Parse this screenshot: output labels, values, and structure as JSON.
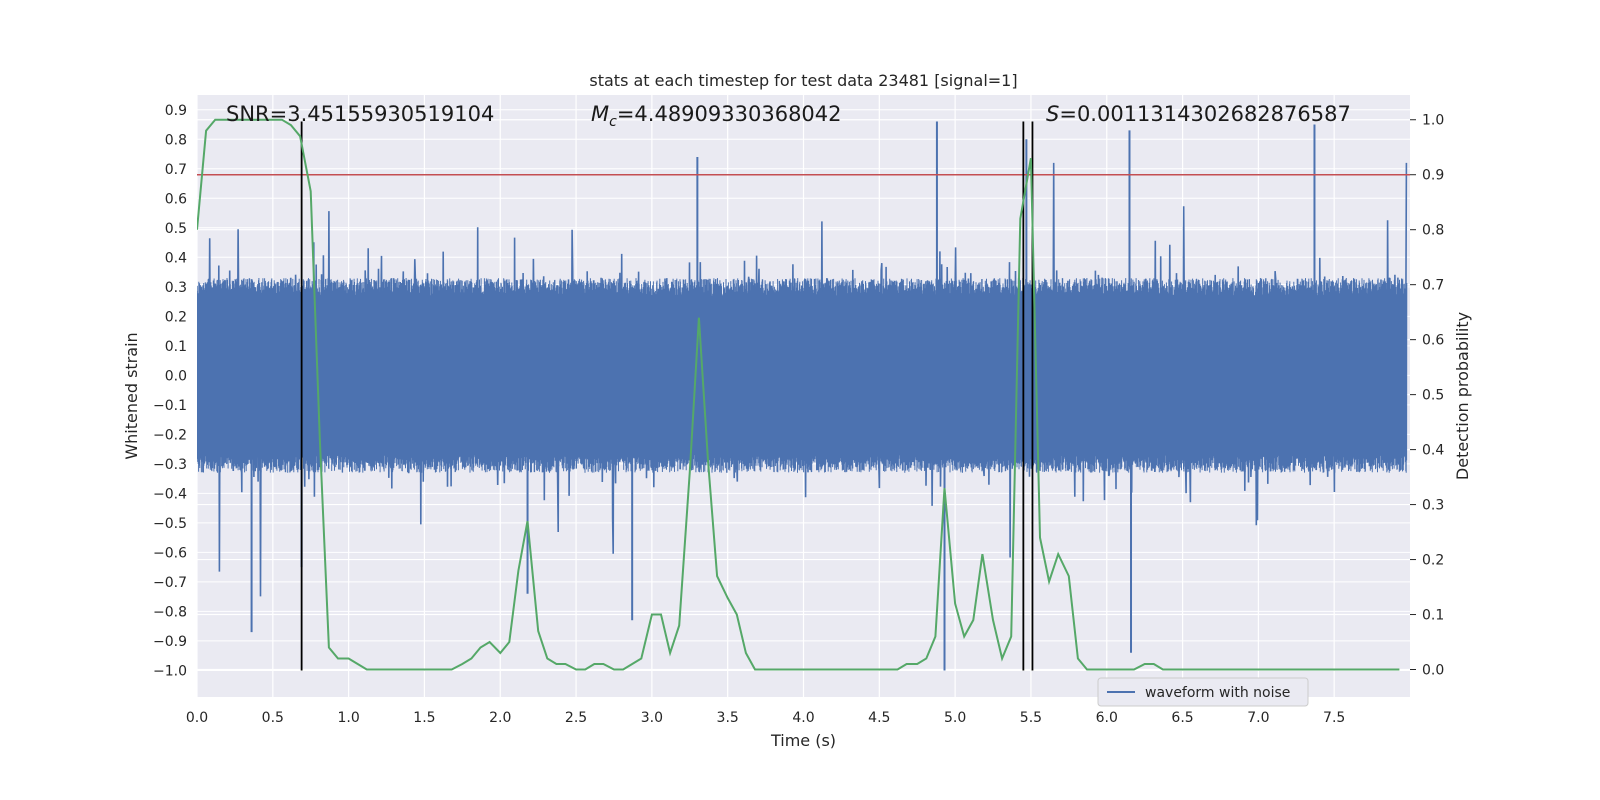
{
  "chart_data": {
    "type": "line",
    "title": "stats at each timestep for test data 23481 [signal=1]",
    "xlabel": "Time (s)",
    "ylabel_left": "Whitened strain",
    "ylabel_right": "Detection probability",
    "xlim": [
      0.0,
      8.0
    ],
    "ylim_left": [
      -1.09,
      0.95
    ],
    "ylim_right": [
      -0.05,
      1.045
    ],
    "x_ticks": [
      "0.0",
      "0.5",
      "1.0",
      "1.5",
      "2.0",
      "2.5",
      "3.0",
      "3.5",
      "4.0",
      "4.5",
      "5.0",
      "5.5",
      "6.0",
      "6.5",
      "7.0",
      "7.5"
    ],
    "y_left_ticks": [
      "0.9",
      "0.8",
      "0.7",
      "0.6",
      "0.5",
      "0.4",
      "0.3",
      "0.2",
      "0.1",
      "0.0",
      "−0.1",
      "−0.2",
      "−0.3",
      "−0.4",
      "−0.5",
      "−0.6",
      "−0.7",
      "−0.8",
      "−0.9",
      "−1.0"
    ],
    "y_right_ticks": [
      "1.0",
      "0.9",
      "0.8",
      "0.7",
      "0.6",
      "0.5",
      "0.4",
      "0.3",
      "0.2",
      "0.1",
      "0.0"
    ],
    "grid": true,
    "annotations": {
      "snr": "SNR=3.45155930519104",
      "mc_symbol": "M",
      "mc_sub": "c",
      "mc_value": "=4.48909330368042",
      "s_symbol": "S",
      "s_value": "=0.0011314302682876587"
    },
    "threshold_probability": 0.9,
    "vertical_lines_time": [
      0.69,
      5.45,
      5.51
    ],
    "legend": {
      "label": "waveform with noise",
      "position": "lower right"
    },
    "colors": {
      "waveform": "#4c72b0",
      "probability": "#55a868",
      "threshold": "#c44e52",
      "vlines": "#000000",
      "background": "#eaeaf2",
      "grid": "#ffffff"
    },
    "series": [
      {
        "name": "waveform with noise",
        "envelope": "approx. ±0.3 to ±0.6 whitened strain with spikes",
        "spikes": [
          {
            "t": 0.36,
            "y": -0.87
          },
          {
            "t": 0.69,
            "y": -0.65
          },
          {
            "t": 2.18,
            "y": -0.74
          },
          {
            "t": 2.87,
            "y": -0.83
          },
          {
            "t": 3.3,
            "y": 0.74
          },
          {
            "t": 4.88,
            "y": 0.86
          },
          {
            "t": 4.93,
            "y": -1.0
          },
          {
            "t": 5.47,
            "y": 0.8
          },
          {
            "t": 6.15,
            "y": 0.83
          },
          {
            "t": 6.16,
            "y": -0.94
          },
          {
            "t": 7.37,
            "y": 0.85
          }
        ]
      },
      {
        "name": "detection probability",
        "x": [
          0.0,
          0.06,
          0.12,
          0.18,
          0.25,
          0.31,
          0.37,
          0.43,
          0.5,
          0.56,
          0.62,
          0.68,
          0.75,
          0.81,
          0.87,
          0.93,
          1.0,
          1.06,
          1.12,
          1.18,
          1.25,
          1.31,
          1.37,
          1.43,
          1.5,
          1.56,
          1.62,
          1.68,
          1.75,
          1.81,
          1.87,
          1.93,
          2.0,
          2.06,
          2.12,
          2.18,
          2.25,
          2.31,
          2.37,
          2.43,
          2.5,
          2.56,
          2.62,
          2.68,
          2.75,
          2.81,
          2.87,
          2.93,
          3.0,
          3.06,
          3.12,
          3.18,
          3.25,
          3.31,
          3.37,
          3.43,
          3.5,
          3.56,
          3.62,
          3.68,
          3.75,
          3.81,
          3.87,
          3.93,
          4.0,
          4.06,
          4.12,
          4.18,
          4.25,
          4.31,
          4.37,
          4.43,
          4.5,
          4.56,
          4.62,
          4.68,
          4.75,
          4.81,
          4.87,
          4.93,
          5.0,
          5.06,
          5.12,
          5.18,
          5.25,
          5.31,
          5.37,
          5.43,
          5.5,
          5.56,
          5.62,
          5.68,
          5.75,
          5.81,
          5.87,
          5.93,
          6.0,
          6.06,
          6.12,
          6.18,
          6.25,
          6.31,
          6.37,
          6.43,
          6.5,
          6.56,
          6.62,
          6.68,
          6.75,
          6.81,
          6.87,
          6.93,
          7.0,
          7.06,
          7.12,
          7.18,
          7.25,
          7.31,
          7.37,
          7.43,
          7.5,
          7.56,
          7.62,
          7.68,
          7.75,
          7.81,
          7.87,
          7.93
        ],
        "y": [
          0.8,
          0.98,
          1.0,
          1.0,
          1.0,
          1.0,
          1.0,
          1.0,
          1.0,
          1.0,
          0.99,
          0.97,
          0.87,
          0.42,
          0.04,
          0.02,
          0.02,
          0.01,
          0.0,
          0.0,
          0.0,
          0.0,
          0.0,
          0.0,
          0.0,
          0.0,
          0.0,
          0.0,
          0.01,
          0.02,
          0.04,
          0.05,
          0.03,
          0.05,
          0.18,
          0.27,
          0.07,
          0.02,
          0.01,
          0.01,
          0.0,
          0.0,
          0.01,
          0.01,
          0.0,
          0.0,
          0.01,
          0.02,
          0.1,
          0.1,
          0.03,
          0.08,
          0.36,
          0.64,
          0.38,
          0.17,
          0.13,
          0.1,
          0.03,
          0.0,
          0.0,
          0.0,
          0.0,
          0.0,
          0.0,
          0.0,
          0.0,
          0.0,
          0.0,
          0.0,
          0.0,
          0.0,
          0.0,
          0.0,
          0.0,
          0.01,
          0.01,
          0.02,
          0.06,
          0.33,
          0.12,
          0.06,
          0.09,
          0.21,
          0.09,
          0.02,
          0.06,
          0.82,
          0.93,
          0.24,
          0.16,
          0.21,
          0.17,
          0.02,
          0.0,
          0.0,
          0.0,
          0.0,
          0.0,
          0.0,
          0.01,
          0.01,
          0.0,
          0.0,
          0.0,
          0.0,
          0.0,
          0.0,
          0.0,
          0.0,
          0.0,
          0.0,
          0.0,
          0.0,
          0.0,
          0.0,
          0.0,
          0.0,
          0.0,
          0.0,
          0.0,
          0.0,
          0.0,
          0.0,
          0.0,
          0.0,
          0.0,
          0.0
        ]
      }
    ]
  }
}
